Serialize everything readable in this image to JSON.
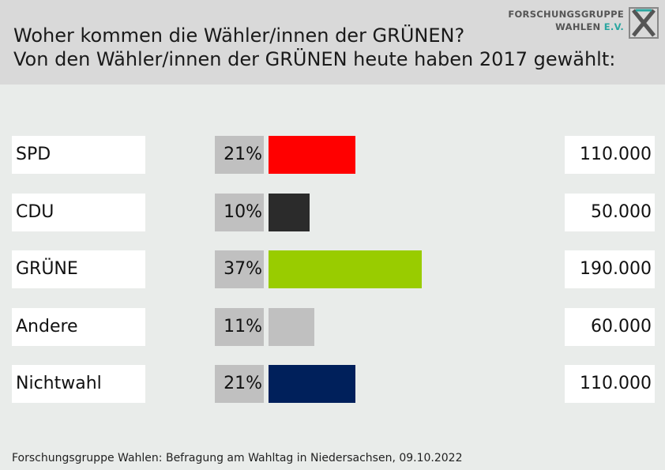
{
  "header": {
    "title_line1": "Woher kommen die Wähler/innen der GRÜNEN?",
    "title_line2": "Von den Wähler/innen der GRÜNEN heute haben 2017 gewählt:",
    "logo_line1": "FORSCHUNGSGRUPPE",
    "logo_line2": "WAHLEN",
    "logo_ev": "E.V."
  },
  "chart_data": {
    "type": "bar",
    "orientation": "horizontal",
    "title": "Woher kommen die Wähler/innen der GRÜNEN?",
    "subtitle": "Von den Wähler/innen der GRÜNEN heute haben 2017 gewählt:",
    "categories": [
      "SPD",
      "CDU",
      "GRÜNE",
      "Andere",
      "Nichtwahl"
    ],
    "values": [
      21,
      10,
      37,
      11,
      21
    ],
    "percent_labels": [
      "21%",
      "10%",
      "37%",
      "11%",
      "21%"
    ],
    "absolute_labels": [
      "110.000",
      "50.000",
      "190.000",
      "60.000",
      "110.000"
    ],
    "colors": [
      "#ff0000",
      "#2b2b2b",
      "#99cc00",
      "#c0c0c0",
      "#00205b"
    ],
    "unit": "%",
    "grid": false
  },
  "footer": {
    "source": "Forschungsgruppe Wahlen: Befragung am Wahltag in Niedersachsen, 09.10.2022"
  }
}
